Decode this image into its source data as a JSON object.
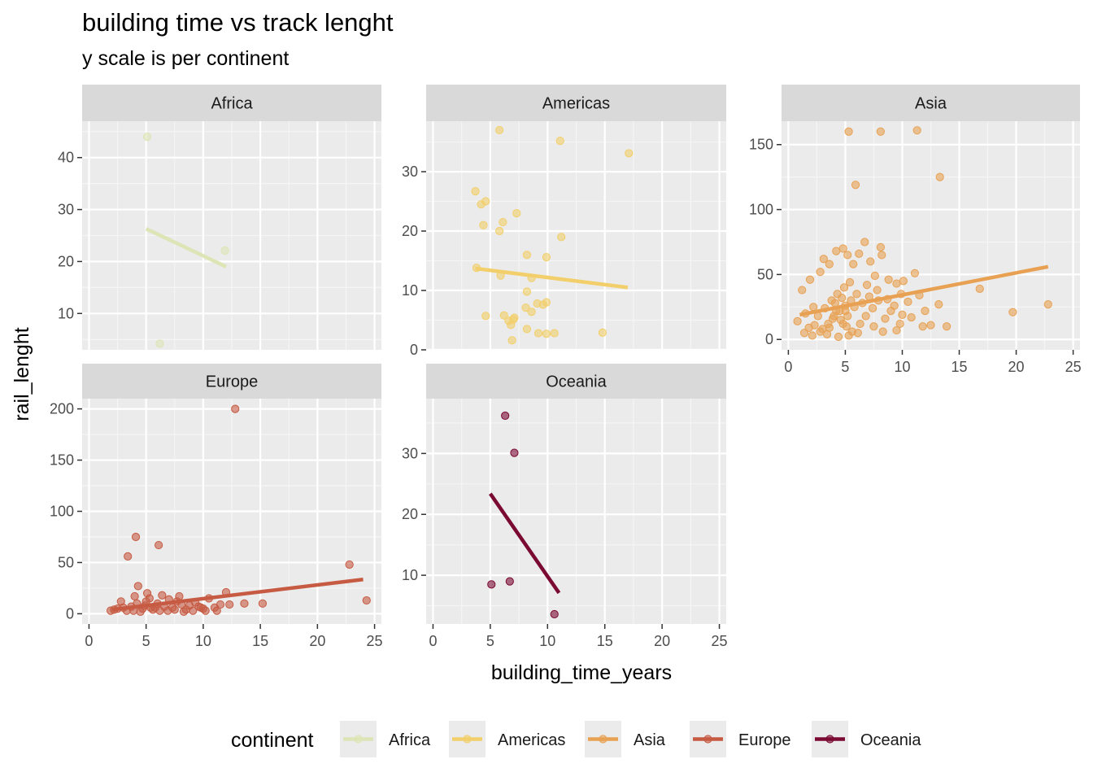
{
  "title": "building time vs track lenght",
  "subtitle": "y scale is per continent",
  "chart_data": {
    "type": "scatter",
    "title": "building time vs track lenght",
    "subtitle": "y scale is per continent",
    "xlabel": "building_time_years",
    "ylabel": "rail_lenght",
    "xlim": [
      0,
      25
    ],
    "x_ticks": [
      0,
      5,
      10,
      15,
      20,
      25
    ],
    "grid": true,
    "legend": {
      "title": "continent",
      "position": "bottom"
    },
    "facets": [
      {
        "name": "Africa",
        "color": "#DDE5B6",
        "ylim": [
          3.0,
          47.0
        ],
        "y_ticks": [
          10,
          20,
          30,
          40
        ],
        "points": [
          [
            5.1,
            44.0
          ],
          [
            11.9,
            22.1
          ],
          [
            6.2,
            4.2
          ]
        ],
        "fit": [
          [
            5.0,
            26.3
          ],
          [
            12.0,
            19.0
          ]
        ]
      },
      {
        "name": "Americas",
        "color": "#F2CF6A",
        "ylim": [
          0,
          38.5
        ],
        "y_ticks": [
          0,
          10,
          20,
          30
        ],
        "points": [
          [
            5.8,
            37.0
          ],
          [
            11.1,
            35.2
          ],
          [
            17.1,
            33.1
          ],
          [
            3.7,
            26.7
          ],
          [
            4.6,
            25.0
          ],
          [
            4.2,
            24.5
          ],
          [
            7.3,
            23.0
          ],
          [
            6.1,
            21.5
          ],
          [
            4.4,
            21.0
          ],
          [
            5.8,
            20.0
          ],
          [
            11.2,
            19.0
          ],
          [
            8.2,
            16.0
          ],
          [
            9.9,
            15.6
          ],
          [
            3.8,
            13.8
          ],
          [
            5.9,
            12.5
          ],
          [
            8.6,
            12.1
          ],
          [
            8.2,
            9.8
          ],
          [
            9.9,
            8.0
          ],
          [
            9.1,
            7.8
          ],
          [
            9.6,
            7.6
          ],
          [
            8.1,
            7.1
          ],
          [
            8.6,
            6.4
          ],
          [
            4.6,
            5.7
          ],
          [
            6.2,
            5.8
          ],
          [
            7.1,
            5.4
          ],
          [
            7.0,
            5.1
          ],
          [
            6.6,
            4.9
          ],
          [
            6.8,
            4.2
          ],
          [
            8.2,
            3.5
          ],
          [
            9.2,
            2.8
          ],
          [
            9.9,
            2.7
          ],
          [
            10.6,
            2.8
          ],
          [
            14.8,
            2.9
          ],
          [
            6.9,
            1.6
          ]
        ],
        "fit": [
          [
            3.7,
            13.7
          ],
          [
            17.0,
            10.5
          ]
        ]
      },
      {
        "name": "Asia",
        "color": "#E8A153",
        "ylim": [
          -8,
          168
        ],
        "y_ticks": [
          0,
          50,
          100,
          150
        ],
        "points": [
          [
            5.3,
            160.0
          ],
          [
            8.1,
            160.0
          ],
          [
            11.3,
            161.0
          ],
          [
            13.3,
            125.0
          ],
          [
            5.9,
            119.0
          ],
          [
            1.2,
            38.0
          ],
          [
            1.9,
            46.0
          ],
          [
            2.8,
            52.0
          ],
          [
            3.1,
            62.0
          ],
          [
            3.6,
            58.0
          ],
          [
            4.2,
            68.0
          ],
          [
            4.8,
            70.0
          ],
          [
            5.2,
            65.0
          ],
          [
            5.7,
            58.0
          ],
          [
            6.2,
            66.0
          ],
          [
            6.7,
            75.0
          ],
          [
            7.2,
            60.0
          ],
          [
            8.1,
            71.0
          ],
          [
            8.2,
            65.0
          ],
          [
            7.6,
            49.0
          ],
          [
            8.8,
            46.0
          ],
          [
            9.5,
            43.0
          ],
          [
            10.1,
            45.0
          ],
          [
            11.1,
            51.0
          ],
          [
            9.9,
            35.0
          ],
          [
            10.5,
            29.0
          ],
          [
            11.5,
            34.0
          ],
          [
            13.2,
            27.0
          ],
          [
            16.8,
            39.0
          ],
          [
            19.7,
            21.0
          ],
          [
            22.8,
            27.0
          ],
          [
            9.0,
            22.0
          ],
          [
            10.0,
            19.0
          ],
          [
            11.8,
            10.0
          ],
          [
            12.5,
            11.0
          ],
          [
            13.9,
            10.0
          ],
          [
            9.5,
            7.0
          ],
          [
            1.4,
            5.0
          ],
          [
            2.1,
            3.0
          ],
          [
            3.0,
            8.0
          ],
          [
            3.5,
            12.0
          ],
          [
            4.0,
            18.0
          ],
          [
            4.5,
            22.0
          ],
          [
            5.0,
            26.0
          ],
          [
            5.5,
            30.0
          ],
          [
            6.0,
            35.0
          ],
          [
            3.8,
            30.0
          ],
          [
            4.3,
            35.0
          ],
          [
            4.9,
            40.0
          ],
          [
            5.4,
            44.0
          ],
          [
            2.6,
            18.0
          ],
          [
            3.2,
            24.0
          ],
          [
            4.1,
            28.0
          ],
          [
            4.6,
            15.0
          ],
          [
            5.1,
            10.0
          ],
          [
            5.6,
            6.0
          ],
          [
            6.3,
            12.0
          ],
          [
            6.8,
            18.0
          ],
          [
            7.4,
            24.0
          ],
          [
            7.9,
            30.0
          ],
          [
            8.5,
            16.0
          ],
          [
            2.3,
            11.0
          ],
          [
            3.4,
            4.0
          ],
          [
            4.4,
            2.0
          ],
          [
            5.3,
            3.0
          ],
          [
            6.1,
            5.0
          ],
          [
            4.7,
            32.0
          ],
          [
            4.2,
            22.0
          ],
          [
            3.9,
            16.0
          ],
          [
            5.2,
            18.0
          ],
          [
            5.0,
            22.0
          ],
          [
            4.8,
            12.0
          ],
          [
            3.6,
            9.0
          ],
          [
            2.8,
            6.0
          ],
          [
            5.8,
            25.0
          ],
          [
            6.5,
            28.0
          ],
          [
            7.1,
            33.0
          ],
          [
            1.8,
            9.0
          ],
          [
            0.8,
            14.0
          ],
          [
            1.5,
            20.0
          ],
          [
            2.2,
            25.0
          ],
          [
            6.9,
            42.0
          ],
          [
            7.8,
            38.0
          ],
          [
            8.7,
            31.0
          ],
          [
            9.3,
            26.0
          ],
          [
            10.8,
            17.0
          ],
          [
            12.0,
            22.0
          ],
          [
            7.5,
            10.0
          ],
          [
            8.3,
            6.0
          ],
          [
            9.8,
            12.0
          ]
        ],
        "fit": [
          [
            1.0,
            19.0
          ],
          [
            22.8,
            56.0
          ]
        ]
      },
      {
        "name": "Europe",
        "color": "#C65A42",
        "ylim": [
          -10,
          210
        ],
        "y_ticks": [
          0,
          50,
          100,
          150,
          200
        ],
        "points": [
          [
            12.8,
            200.0
          ],
          [
            4.1,
            75.0
          ],
          [
            6.1,
            67.0
          ],
          [
            3.4,
            56.0
          ],
          [
            22.8,
            48.0
          ],
          [
            4.3,
            27.0
          ],
          [
            12.0,
            21.0
          ],
          [
            5.1,
            20.0
          ],
          [
            24.3,
            13.0
          ],
          [
            15.2,
            10.0
          ],
          [
            13.6,
            10.0
          ],
          [
            1.9,
            3.0
          ],
          [
            2.5,
            5.0
          ],
          [
            2.8,
            12.0
          ],
          [
            3.3,
            3.0
          ],
          [
            3.7,
            7.0
          ],
          [
            4.0,
            17.0
          ],
          [
            4.5,
            2.0
          ],
          [
            4.9,
            8.0
          ],
          [
            5.3,
            15.0
          ],
          [
            5.6,
            4.0
          ],
          [
            6.0,
            10.0
          ],
          [
            6.4,
            18.0
          ],
          [
            6.9,
            3.0
          ],
          [
            7.3,
            6.0
          ],
          [
            7.7,
            12.0
          ],
          [
            8.1,
            9.0
          ],
          [
            8.5,
            4.0
          ],
          [
            9.1,
            3.0
          ],
          [
            9.6,
            7.0
          ],
          [
            10.0,
            5.0
          ],
          [
            10.5,
            15.0
          ],
          [
            11.0,
            6.0
          ],
          [
            11.5,
            9.0
          ],
          [
            2.2,
            4.0
          ],
          [
            3.0,
            6.0
          ],
          [
            3.9,
            3.0
          ],
          [
            4.7,
            5.0
          ],
          [
            5.8,
            6.0
          ],
          [
            6.6,
            7.0
          ],
          [
            7.5,
            4.0
          ],
          [
            8.8,
            8.0
          ],
          [
            9.3,
            11.0
          ],
          [
            10.2,
            3.0
          ],
          [
            4.2,
            10.0
          ],
          [
            5.0,
            12.0
          ],
          [
            5.4,
            6.0
          ],
          [
            6.2,
            3.0
          ],
          [
            7.0,
            14.0
          ],
          [
            7.9,
            17.0
          ],
          [
            8.3,
            2.0
          ],
          [
            9.8,
            6.0
          ],
          [
            11.2,
            3.0
          ],
          [
            12.3,
            9.0
          ]
        ],
        "fit": [
          [
            2.0,
            4.0
          ],
          [
            24.0,
            33.5
          ]
        ]
      },
      {
        "name": "Oceania",
        "color": "#7A0A32",
        "ylim": [
          2.0,
          39.0
        ],
        "y_ticks": [
          10,
          20,
          30
        ],
        "points": [
          [
            6.3,
            36.2
          ],
          [
            7.1,
            30.1
          ],
          [
            5.1,
            8.5
          ],
          [
            6.7,
            9.0
          ],
          [
            10.6,
            3.6
          ]
        ],
        "fit": [
          [
            5.0,
            23.4
          ],
          [
            11.0,
            7.1
          ]
        ]
      }
    ]
  }
}
